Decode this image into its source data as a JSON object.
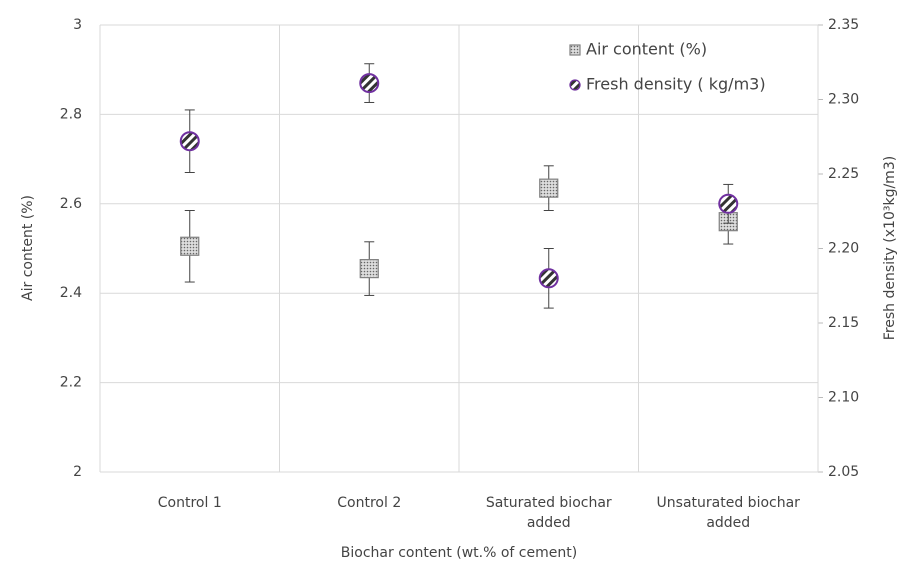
{
  "chart_data": {
    "type": "scatter",
    "x_label": "Biochar content  (wt.% of cement)",
    "y_label": "Air content (%)",
    "y2_label": "Fresh density (x10³kg/m3)",
    "categories": [
      "Control 1",
      "Control 2",
      "Saturated biochar added",
      "Unsaturated biochar added"
    ],
    "ylim": [
      2,
      3
    ],
    "yticks": [
      2,
      2.2,
      2.4,
      2.6,
      2.8,
      3
    ],
    "y2lim": [
      2.05,
      2.35
    ],
    "y2ticks": [
      2.05,
      {
        "value": 2.1,
        "label": "2.10"
      },
      2.15,
      {
        "value": 2.2,
        "label": "2.20"
      },
      2.25,
      {
        "value": 2.3,
        "label": "2.30"
      },
      2.35
    ],
    "grid": true,
    "legend": "top-right",
    "series": [
      {
        "name": "Air content (%)",
        "color": "#808080",
        "marker": "square",
        "values": [
          2.505,
          2.455,
          2.635,
          2.56
        ],
        "errors": [
          0.08,
          0.06,
          0.05,
          0.05
        ]
      },
      {
        "name": "Fresh density ( kg/m3)",
        "color": "#7030a0",
        "marker": "circle",
        "axis": "y2",
        "values": [
          2.272,
          2.311,
          2.18,
          2.23
        ],
        "errors": [
          0.021,
          0.013,
          0.02,
          0.013
        ]
      }
    ]
  }
}
